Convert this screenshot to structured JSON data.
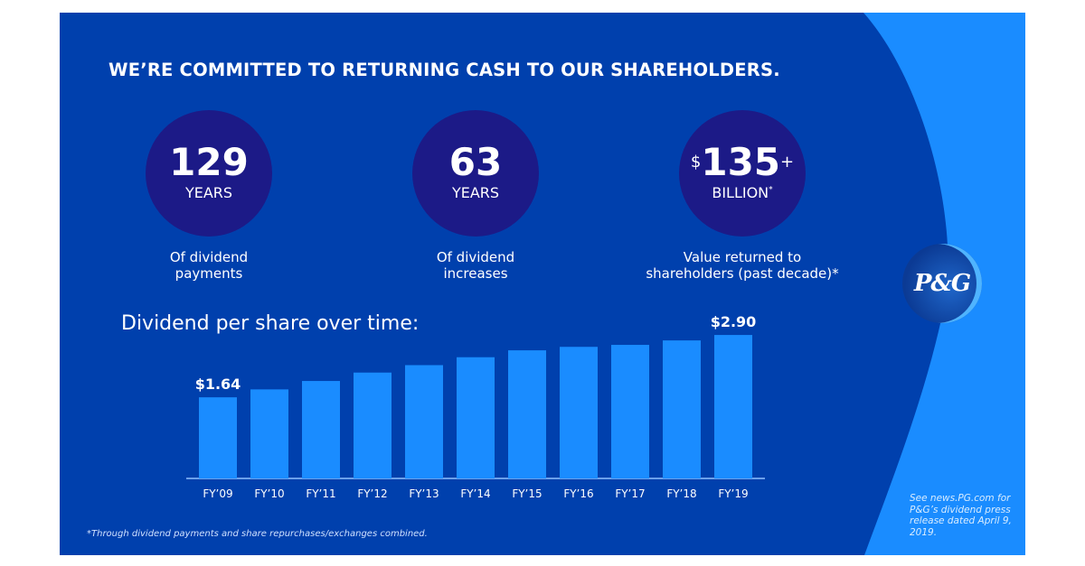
{
  "title": "WE’RE COMMITTED TO RETURNING CASH TO OUR SHAREHOLDERS.",
  "stats": [
    {
      "value": "129",
      "unit": "YEARS",
      "caption": [
        "Of dividend",
        "payments"
      ]
    },
    {
      "value": "63",
      "unit": "YEARS",
      "caption": [
        "Of dividend",
        "increases"
      ]
    },
    {
      "prefix": "$",
      "value": "135",
      "suffix": "+",
      "unit": "BILLION",
      "unit_suffix": "*",
      "caption": [
        "Value returned to",
        "shareholders (past decade)*"
      ]
    }
  ],
  "logo": "P&G",
  "footnote": "*Through dividend payments and share repurchases/exchanges combined.",
  "side_note": "See news.PG.com for P&G’s dividend press release dated April 9, 2019.",
  "colors": {
    "background": "#0040ad",
    "accent": "#1a8cff",
    "circle": "#1c1a87",
    "bar": "#1a8cff"
  },
  "chart_data": {
    "type": "bar",
    "title": "Dividend per share over time:",
    "categories": [
      "FY’09",
      "FY’10",
      "FY’11",
      "FY’12",
      "FY’13",
      "FY’14",
      "FY’15",
      "FY’16",
      "FY’17",
      "FY’18",
      "FY’19"
    ],
    "values": [
      1.64,
      1.8,
      1.97,
      2.14,
      2.29,
      2.45,
      2.59,
      2.66,
      2.7,
      2.79,
      2.9
    ],
    "data_labels": {
      "0": "$1.64",
      "10": "$2.90"
    },
    "ylim": [
      0,
      3.2
    ],
    "grid": false
  }
}
